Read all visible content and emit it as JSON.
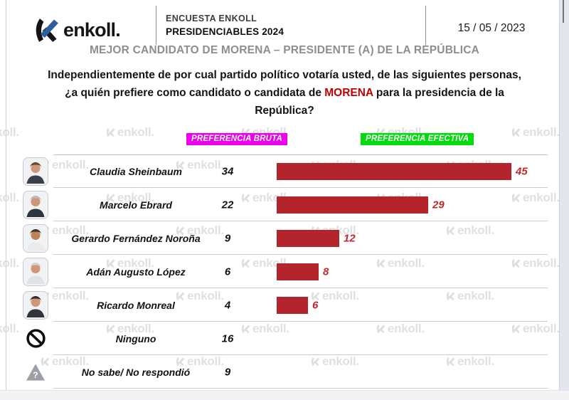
{
  "header": {
    "logo_text": "enkoll.",
    "survey_line1": "ENCUESTA ENKOLL",
    "survey_line2": "PRESIDENCIABLES 2024",
    "date": "15 / 05 / 2023"
  },
  "title": "MEJOR CANDIDATO DE MORENA – PRESIDENTE (A) DE LA REPÚBLICA",
  "question": {
    "part1": "Independientemente de por cual partido político votaría usted, de las siguientes personas, ¿a quién prefiere como candidato o candidata de ",
    "highlight": "MORENA",
    "part2": " para la presidencia de la República?"
  },
  "columns": {
    "bruta_label": "PREFERENCIA BRUTA",
    "efectiva_label": "PREFERENCIA EFECTIVA",
    "bruta_color": "#EE00EE",
    "efectiva_color": "#00DC0C"
  },
  "colors": {
    "bar": "#B3242C",
    "value_label": "#C0272D",
    "highlight": "#C00000"
  },
  "watermark": "enkoll.",
  "rows": [
    {
      "name": "Claudia Sheinbaum",
      "icon": "photo"
    },
    {
      "name": "Marcelo Ebrard",
      "icon": "photo"
    },
    {
      "name": "Gerardo Fernández Noroña",
      "icon": "photo"
    },
    {
      "name": "Adán Augusto López",
      "icon": "photo"
    },
    {
      "name": "Ricardo Monreal",
      "icon": "photo"
    },
    {
      "name": "Ninguno",
      "icon": "prohibition"
    },
    {
      "name": "No sabe/ No respondió",
      "icon": "question"
    }
  ],
  "chart_data": {
    "type": "bar",
    "orientation": "horizontal",
    "title": "MEJOR CANDIDATO DE MORENA – PRESIDENTE (A) DE LA REPÚBLICA",
    "categories": [
      "Claudia Sheinbaum",
      "Marcelo Ebrard",
      "Gerardo Fernández Noroña",
      "Adán Augusto López",
      "Ricardo Monreal",
      "Ninguno",
      "No sabe/ No respondió"
    ],
    "series": [
      {
        "name": "PREFERENCIA BRUTA",
        "values": [
          34,
          22,
          9,
          6,
          4,
          16,
          9
        ]
      },
      {
        "name": "PREFERENCIA EFECTIVA",
        "values": [
          45,
          29,
          12,
          8,
          6,
          null,
          null
        ]
      }
    ],
    "xlim": [
      0,
      50
    ],
    "grid": false,
    "legend_position": "top",
    "bar_color": "#B3242C"
  }
}
